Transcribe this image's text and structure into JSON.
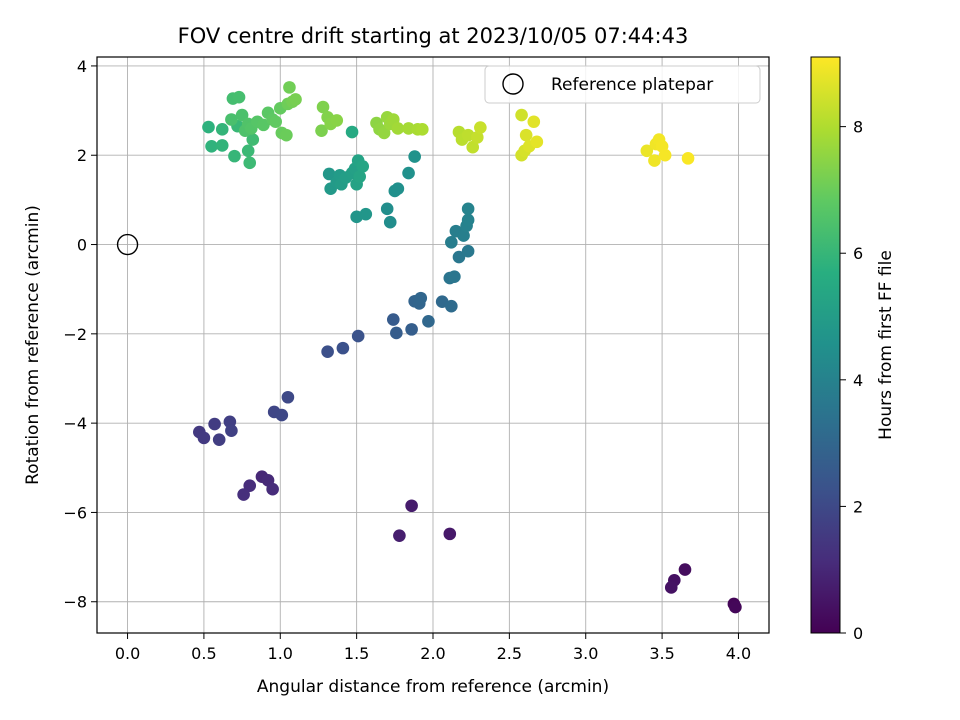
{
  "chart_data": {
    "type": "scatter",
    "title": "FOV centre drift starting at 2023/10/05 07:44:43",
    "xlabel": "Angular distance from reference (arcmin)",
    "ylabel": "Rotation from reference (arcmin)",
    "xlim": [
      -0.2,
      4.2
    ],
    "ylim": [
      -8.7,
      4.2
    ],
    "xticks": [
      "0.0",
      "0.5",
      "1.0",
      "1.5",
      "2.0",
      "2.5",
      "3.0",
      "3.5",
      "4.0"
    ],
    "yticks": [
      "−8",
      "−6",
      "−4",
      "−2",
      "0",
      "2",
      "4"
    ],
    "grid": true,
    "legend": {
      "position": "top-right",
      "label": "Reference platepar"
    },
    "reference_point": [
      0.0,
      0.0
    ],
    "colorbar": {
      "label": "Hours from first FF file",
      "range": [
        0,
        9.1
      ],
      "ticks": [
        "0",
        "2",
        "4",
        "6",
        "8"
      ],
      "colormap": "viridis"
    },
    "points": [
      [
        3.97,
        -8.05,
        0.1
      ],
      [
        3.98,
        -8.12,
        0.15
      ],
      [
        3.65,
        -7.28,
        0.3
      ],
      [
        3.58,
        -7.52,
        0.4
      ],
      [
        3.56,
        -7.68,
        0.45
      ],
      [
        2.11,
        -6.48,
        0.6
      ],
      [
        1.86,
        -5.85,
        0.7
      ],
      [
        1.78,
        -6.52,
        0.75
      ],
      [
        0.88,
        -5.2,
        1.0
      ],
      [
        0.92,
        -5.28,
        1.05
      ],
      [
        0.95,
        -5.48,
        1.1
      ],
      [
        0.8,
        -5.4,
        1.15
      ],
      [
        0.76,
        -5.6,
        1.2
      ],
      [
        0.47,
        -4.2,
        1.5
      ],
      [
        0.5,
        -4.33,
        1.55
      ],
      [
        0.57,
        -4.02,
        1.6
      ],
      [
        0.6,
        -4.37,
        1.65
      ],
      [
        0.67,
        -3.97,
        1.7
      ],
      [
        0.68,
        -4.17,
        1.75
      ],
      [
        0.96,
        -3.75,
        1.9
      ],
      [
        1.01,
        -3.82,
        1.95
      ],
      [
        1.05,
        -3.42,
        2.0
      ],
      [
        1.31,
        -2.4,
        2.2
      ],
      [
        1.41,
        -2.32,
        2.25
      ],
      [
        1.51,
        -2.05,
        2.3
      ],
      [
        1.74,
        -1.68,
        2.6
      ],
      [
        1.76,
        -1.98,
        2.65
      ],
      [
        1.86,
        -1.9,
        2.7
      ],
      [
        1.88,
        -1.27,
        2.9
      ],
      [
        1.91,
        -1.32,
        2.95
      ],
      [
        1.92,
        -1.2,
        3.0
      ],
      [
        1.97,
        -1.72,
        3.05
      ],
      [
        2.06,
        -1.28,
        3.1
      ],
      [
        2.12,
        -1.38,
        3.15
      ],
      [
        2.11,
        -0.75,
        3.5
      ],
      [
        2.14,
        -0.72,
        3.55
      ],
      [
        2.17,
        -0.28,
        3.6
      ],
      [
        2.23,
        -0.15,
        3.65
      ],
      [
        2.12,
        0.05,
        3.8
      ],
      [
        2.15,
        0.3,
        3.85
      ],
      [
        2.2,
        0.2,
        3.9
      ],
      [
        2.22,
        0.42,
        3.95
      ],
      [
        2.23,
        0.55,
        4.0
      ],
      [
        2.23,
        0.8,
        4.05
      ],
      [
        1.72,
        0.5,
        4.4
      ],
      [
        1.7,
        0.8,
        4.45
      ],
      [
        1.75,
        1.2,
        4.5
      ],
      [
        1.77,
        1.25,
        4.52
      ],
      [
        1.84,
        1.6,
        4.55
      ],
      [
        1.88,
        1.97,
        4.6
      ],
      [
        1.5,
        0.62,
        4.7
      ],
      [
        1.56,
        0.68,
        4.75
      ],
      [
        1.32,
        1.58,
        4.8
      ],
      [
        1.33,
        1.25,
        4.85
      ],
      [
        1.37,
        1.4,
        4.9
      ],
      [
        1.39,
        1.55,
        4.95
      ],
      [
        1.4,
        1.35,
        5.0
      ],
      [
        1.43,
        1.5,
        5.05
      ],
      [
        1.47,
        1.6,
        5.1
      ],
      [
        1.49,
        1.7,
        5.15
      ],
      [
        1.5,
        1.35,
        5.2
      ],
      [
        1.51,
        1.88,
        5.25
      ],
      [
        1.52,
        1.52,
        5.3
      ],
      [
        1.54,
        1.75,
        5.35
      ],
      [
        1.47,
        2.52,
        5.5
      ],
      [
        0.53,
        2.63,
        5.8
      ],
      [
        0.55,
        2.2,
        5.85
      ],
      [
        0.62,
        2.22,
        5.9
      ],
      [
        0.62,
        2.58,
        5.95
      ],
      [
        0.7,
        1.98,
        6.0
      ],
      [
        0.72,
        2.65,
        6.05
      ],
      [
        0.79,
        2.1,
        6.1
      ],
      [
        0.8,
        1.83,
        6.15
      ],
      [
        0.82,
        2.35,
        6.2
      ],
      [
        0.69,
        3.27,
        6.3
      ],
      [
        0.73,
        3.3,
        6.35
      ],
      [
        0.68,
        2.8,
        6.4
      ],
      [
        0.75,
        2.9,
        6.45
      ],
      [
        0.77,
        2.55,
        6.5
      ],
      [
        0.79,
        2.7,
        6.55
      ],
      [
        0.81,
        2.6,
        6.6
      ],
      [
        0.85,
        2.75,
        6.65
      ],
      [
        0.89,
        2.68,
        6.7
      ],
      [
        0.92,
        2.95,
        6.75
      ],
      [
        0.95,
        2.8,
        6.8
      ],
      [
        0.97,
        2.75,
        6.85
      ],
      [
        1.0,
        3.05,
        6.9
      ],
      [
        1.01,
        2.5,
        6.95
      ],
      [
        1.04,
        2.45,
        7.0
      ],
      [
        1.05,
        3.15,
        7.05
      ],
      [
        1.06,
        3.52,
        7.1
      ],
      [
        1.08,
        3.2,
        7.15
      ],
      [
        1.1,
        3.25,
        7.2
      ],
      [
        1.27,
        2.55,
        7.25
      ],
      [
        1.28,
        3.08,
        7.3
      ],
      [
        1.31,
        2.85,
        7.35
      ],
      [
        1.33,
        2.7,
        7.4
      ],
      [
        1.37,
        2.78,
        7.45
      ],
      [
        1.63,
        2.72,
        7.5
      ],
      [
        1.65,
        2.58,
        7.55
      ],
      [
        1.68,
        2.5,
        7.6
      ],
      [
        1.7,
        2.85,
        7.65
      ],
      [
        1.72,
        2.7,
        7.7
      ],
      [
        1.74,
        2.8,
        7.75
      ],
      [
        1.77,
        2.6,
        7.8
      ],
      [
        1.84,
        2.6,
        7.85
      ],
      [
        1.9,
        2.58,
        7.9
      ],
      [
        1.93,
        2.58,
        7.95
      ],
      [
        2.17,
        2.52,
        8.1
      ],
      [
        2.19,
        2.35,
        8.15
      ],
      [
        2.23,
        2.45,
        8.2
      ],
      [
        2.26,
        2.18,
        8.25
      ],
      [
        2.29,
        2.4,
        8.3
      ],
      [
        2.31,
        2.62,
        8.35
      ],
      [
        2.58,
        2.9,
        8.45
      ],
      [
        2.58,
        2.0,
        8.5
      ],
      [
        2.6,
        2.1,
        8.55
      ],
      [
        2.61,
        2.45,
        8.6
      ],
      [
        2.63,
        2.2,
        8.65
      ],
      [
        2.66,
        2.75,
        8.7
      ],
      [
        2.68,
        2.3,
        8.75
      ],
      [
        3.4,
        2.1,
        8.85
      ],
      [
        3.45,
        1.88,
        8.9
      ],
      [
        3.46,
        2.25,
        8.92
      ],
      [
        3.48,
        2.35,
        8.95
      ],
      [
        3.5,
        2.2,
        8.97
      ],
      [
        3.52,
        2.0,
        9.0
      ],
      [
        3.67,
        1.93,
        9.05
      ]
    ]
  }
}
